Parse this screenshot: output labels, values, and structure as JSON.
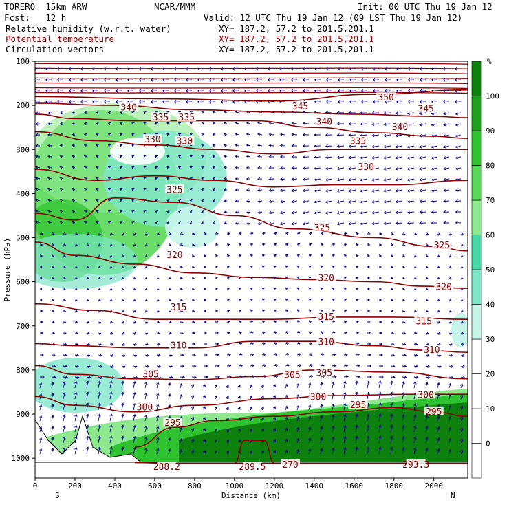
{
  "header": {
    "model": "TORERO  15km ARW",
    "org": "NCAR/MMM",
    "init": "Init: 00 UTC Thu 19 Jan 12",
    "fcst": "Fcst:   12 h",
    "valid": "Valid: 12 UTC Thu 19 Jan 12 (09 LST Thu 19 Jan 12)",
    "fields": [
      {
        "label": "Relative humidity (w.r.t. water)",
        "xy": "XY= 187.2, 57.2 to 201.5,201.1",
        "color": "#000000"
      },
      {
        "label": "Potential temperature",
        "xy": "XY= 187.2, 57.2 to 201.5,201.1",
        "color": "#a00000"
      },
      {
        "label": "Circulation vectors",
        "xy": "XY= 187.2, 57.2 to 201.5,201.1",
        "color": "#000000"
      }
    ]
  },
  "chart_data": {
    "type": "heatmap",
    "xlabel": "Distance (km)",
    "ylabel": "Pressure (hPa)",
    "xlim": [
      0,
      2170
    ],
    "ylim": [
      1045,
      100
    ],
    "xticks": [
      0,
      200,
      400,
      600,
      800,
      1000,
      1200,
      1400,
      1600,
      1800,
      2000
    ],
    "yticks": [
      100,
      200,
      300,
      400,
      500,
      600,
      700,
      800,
      900,
      1000
    ],
    "x_end_labels": {
      "left": "S",
      "right": "N"
    },
    "colorbar": {
      "unit": "%",
      "levels": [
        -10,
        0,
        10,
        20,
        30,
        40,
        50,
        60,
        70,
        80,
        90,
        100,
        110
      ],
      "tick_labels": [
        0,
        10,
        20,
        30,
        40,
        50,
        60,
        70,
        80,
        90,
        100
      ],
      "colors": [
        "#ffffff",
        "#ffffff",
        "#ffffff",
        "#ffffff",
        "#c8f5ea",
        "#7fe6c8",
        "#48d8a8",
        "#8ee88e",
        "#5ad85a",
        "#2ec22e",
        "#1ea21e",
        "#0e800e"
      ]
    },
    "theta_contours": [
      {
        "value": 288.2,
        "label": "288.2",
        "points": [
          [
            500,
            1010
          ],
          [
            700,
            1012
          ],
          [
            1000,
            1012
          ],
          [
            1300,
            1012
          ],
          [
            2170,
            1012
          ]
        ]
      },
      {
        "value": 289.5,
        "label": "289.5",
        "points": [
          [
            1000,
            1012
          ],
          [
            1050,
            960
          ],
          [
            1150,
            960
          ],
          [
            1200,
            1012
          ]
        ]
      },
      {
        "value": 295,
        "label": "295",
        "points": [
          [
            500,
            975
          ],
          [
            700,
            930
          ],
          [
            900,
            915
          ],
          [
            1200,
            905
          ],
          [
            1500,
            895
          ],
          [
            1800,
            885
          ],
          [
            2000,
            895
          ],
          [
            2170,
            905
          ]
        ]
      },
      {
        "value": 300,
        "label": "300",
        "points": [
          [
            0,
            860
          ],
          [
            200,
            880
          ],
          [
            500,
            895
          ],
          [
            800,
            880
          ],
          [
            1200,
            865
          ],
          [
            1500,
            858
          ],
          [
            1900,
            855
          ],
          [
            2170,
            855
          ]
        ]
      },
      {
        "value": 305,
        "label": "305",
        "points": [
          [
            0,
            790
          ],
          [
            200,
            810
          ],
          [
            500,
            820
          ],
          [
            800,
            822
          ],
          [
            1100,
            815
          ],
          [
            1400,
            800
          ],
          [
            1800,
            805
          ],
          [
            2170,
            820
          ]
        ]
      },
      {
        "value": 310,
        "label": "310",
        "points": [
          [
            0,
            740
          ],
          [
            200,
            745
          ],
          [
            500,
            750
          ],
          [
            800,
            750
          ],
          [
            1100,
            735
          ],
          [
            1400,
            735
          ],
          [
            1700,
            745
          ],
          [
            1950,
            755
          ],
          [
            2170,
            760
          ]
        ]
      },
      {
        "value": 315,
        "label": "315",
        "points": [
          [
            0,
            650
          ],
          [
            300,
            665
          ],
          [
            600,
            685
          ],
          [
            900,
            685
          ],
          [
            1200,
            685
          ],
          [
            1500,
            680
          ],
          [
            1800,
            680
          ],
          [
            2170,
            685
          ]
        ]
      },
      {
        "value": 320,
        "label": "320",
        "points": [
          [
            0,
            510
          ],
          [
            200,
            540
          ],
          [
            500,
            560
          ],
          [
            800,
            580
          ],
          [
            1100,
            590
          ],
          [
            1400,
            595
          ],
          [
            1700,
            600
          ],
          [
            1950,
            610
          ],
          [
            2170,
            615
          ]
        ]
      },
      {
        "value": 325,
        "label": "325",
        "points": [
          [
            0,
            445
          ],
          [
            200,
            460
          ],
          [
            400,
            410
          ],
          [
            700,
            420
          ],
          [
            1000,
            450
          ],
          [
            1300,
            480
          ],
          [
            1700,
            500
          ],
          [
            2000,
            520
          ],
          [
            2170,
            530
          ]
        ]
      },
      {
        "value": 330,
        "label": "330",
        "points": [
          [
            0,
            345
          ],
          [
            300,
            370
          ],
          [
            600,
            360
          ],
          [
            900,
            370
          ],
          [
            1200,
            385
          ],
          [
            1500,
            380
          ],
          [
            1800,
            380
          ],
          [
            2170,
            370
          ]
        ]
      },
      {
        "value": 335,
        "label": "335",
        "points": [
          [
            0,
            260
          ],
          [
            300,
            280
          ],
          [
            600,
            290
          ],
          [
            900,
            300
          ],
          [
            1200,
            310
          ],
          [
            1500,
            300
          ],
          [
            1800,
            300
          ],
          [
            2170,
            300
          ]
        ]
      },
      {
        "value": 340,
        "label": "340",
        "points": [
          [
            0,
            220
          ],
          [
            200,
            230
          ],
          [
            500,
            235
          ],
          [
            800,
            235
          ],
          [
            1100,
            235
          ],
          [
            1400,
            250
          ],
          [
            1700,
            262
          ],
          [
            2000,
            270
          ],
          [
            2170,
            275
          ]
        ]
      },
      {
        "value": 345,
        "label": "345",
        "points": [
          [
            0,
            195
          ],
          [
            400,
            200
          ],
          [
            800,
            210
          ],
          [
            1200,
            215
          ],
          [
            1600,
            220
          ],
          [
            2000,
            225
          ],
          [
            2170,
            228
          ]
        ]
      },
      {
        "value": 350,
        "label": "350",
        "points": [
          [
            0,
            180
          ],
          [
            600,
            185
          ],
          [
            1200,
            190
          ],
          [
            1700,
            175
          ],
          [
            2170,
            165
          ]
        ]
      }
    ],
    "contour_labels": [
      {
        "text": "340",
        "x": 470,
        "y": 205
      },
      {
        "text": "335",
        "x": 630,
        "y": 228
      },
      {
        "text": "335",
        "x": 760,
        "y": 228
      },
      {
        "text": "345",
        "x": 1330,
        "y": 203
      },
      {
        "text": "350",
        "x": 1760,
        "y": 183
      },
      {
        "text": "345",
        "x": 1960,
        "y": 208
      },
      {
        "text": "340",
        "x": 1450,
        "y": 238
      },
      {
        "text": "340",
        "x": 1830,
        "y": 250
      },
      {
        "text": "330",
        "x": 590,
        "y": 278
      },
      {
        "text": "330",
        "x": 750,
        "y": 282
      },
      {
        "text": "335",
        "x": 1620,
        "y": 282
      },
      {
        "text": "330",
        "x": 1660,
        "y": 340
      },
      {
        "text": "325",
        "x": 700,
        "y": 392
      },
      {
        "text": "325",
        "x": 1440,
        "y": 478
      },
      {
        "text": "325",
        "x": 2040,
        "y": 518
      },
      {
        "text": "320",
        "x": 700,
        "y": 540
      },
      {
        "text": "320",
        "x": 1460,
        "y": 592
      },
      {
        "text": "320",
        "x": 2050,
        "y": 612
      },
      {
        "text": "315",
        "x": 720,
        "y": 658
      },
      {
        "text": "315",
        "x": 1460,
        "y": 680
      },
      {
        "text": "315",
        "x": 1950,
        "y": 690
      },
      {
        "text": "310",
        "x": 720,
        "y": 745
      },
      {
        "text": "310",
        "x": 1460,
        "y": 737
      },
      {
        "text": "310",
        "x": 1990,
        "y": 755
      },
      {
        "text": "305",
        "x": 580,
        "y": 810
      },
      {
        "text": "305",
        "x": 1290,
        "y": 812
      },
      {
        "text": "305",
        "x": 1450,
        "y": 807
      },
      {
        "text": "300",
        "x": 550,
        "y": 885
      },
      {
        "text": "300",
        "x": 1420,
        "y": 862
      },
      {
        "text": "300",
        "x": 1960,
        "y": 857
      },
      {
        "text": "295",
        "x": 690,
        "y": 920
      },
      {
        "text": "295",
        "x": 1620,
        "y": 880
      },
      {
        "text": "295",
        "x": 2000,
        "y": 895
      },
      {
        "text": "288.2",
        "x": 660,
        "y": 1020
      },
      {
        "text": "289.5",
        "x": 1090,
        "y": 1020
      },
      {
        "text": "270",
        "x": 1280,
        "y": 1015
      },
      {
        "text": "293.3",
        "x": 1910,
        "y": 1015
      }
    ]
  }
}
